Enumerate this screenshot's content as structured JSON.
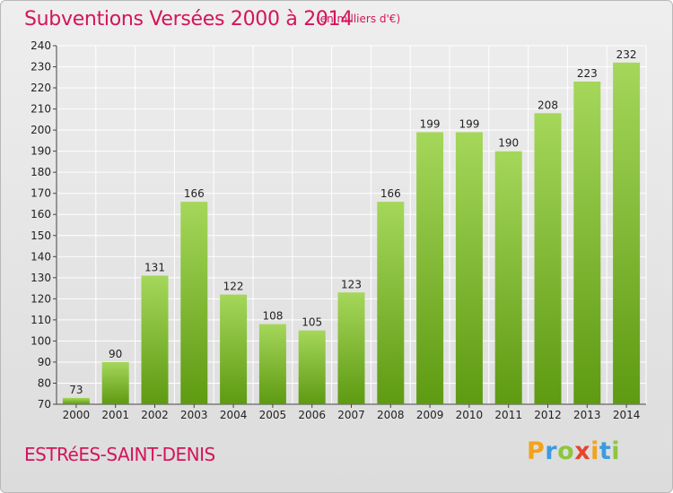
{
  "title": "Subventions Versées 2000 à 2014",
  "subtitle": "(en milliers d'€)",
  "place": "ESTRéES-SAINT-DENIS",
  "logo": {
    "text": "Proxiti",
    "letters": [
      "P",
      "r",
      "o",
      "x",
      "i",
      "t",
      "i"
    ]
  },
  "colors": {
    "title": "#d4145a",
    "bar_top": "#a5d75a",
    "bar_bottom": "#5e9a12",
    "grid": "#ffffff"
  },
  "chart_data": {
    "type": "bar",
    "categories": [
      "2000",
      "2001",
      "2002",
      "2003",
      "2004",
      "2005",
      "2006",
      "2007",
      "2008",
      "2009",
      "2010",
      "2011",
      "2012",
      "2013",
      "2014"
    ],
    "values": [
      73,
      90,
      131,
      166,
      122,
      108,
      105,
      123,
      166,
      199,
      199,
      190,
      208,
      223,
      232
    ],
    "ylim": [
      70,
      240
    ],
    "yticks": [
      70,
      80,
      90,
      100,
      110,
      120,
      130,
      140,
      150,
      160,
      170,
      180,
      190,
      200,
      210,
      220,
      230,
      240
    ],
    "grid": true
  }
}
